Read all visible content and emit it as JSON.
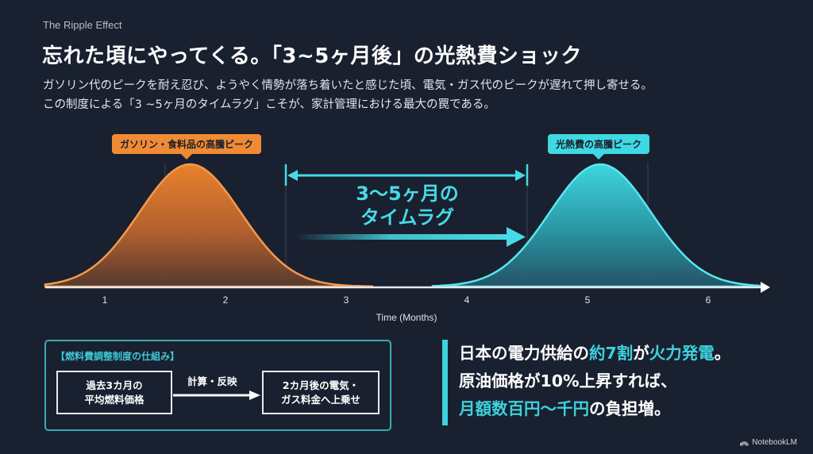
{
  "header": {
    "kicker": "The Ripple Effect",
    "title": "忘れた頃にやってくる。「3~5ヶ月後」の光熱費ショック",
    "description": [
      "ガソリン代のピークを耐え忍び、ようやく情勢が落ち着いたと感じた頃、電気・ガス代のピークが遅れて押し寄せる。",
      "この制度による「3 ~5ヶ月のタイムラグ」こそが、家計管理における最大の罠である。"
    ]
  },
  "chart_data": {
    "type": "area",
    "title": "",
    "xlabel": "Time (Months)",
    "ylabel": "",
    "x_ticks": [
      1,
      2,
      3,
      4,
      5,
      6
    ],
    "xlim": [
      0.5,
      6.5
    ],
    "grid_x": [
      1.5,
      2.5,
      4.5,
      5.5
    ],
    "series": [
      {
        "name": "ガソリン・食料品の高騰ピーク",
        "color": "#f08a34",
        "shape": "gaussian",
        "peak_x": 1.7,
        "peak_relative_height": 1.0,
        "spread_sd_months": 0.42
      },
      {
        "name": "光熱費の高騰ピーク",
        "color": "#3ed9e3",
        "shape": "gaussian",
        "peak_x": 5.1,
        "peak_relative_height": 1.0,
        "spread_sd_months": 0.42
      }
    ],
    "annotations": [
      {
        "type": "span",
        "from": 2.5,
        "to": 4.5,
        "label": "3～5ヶ月の\nタイムラグ",
        "color": "#46dbe6"
      }
    ],
    "legend": "none",
    "grid": true
  },
  "chart": {
    "callout_orange": "ガソリン・食料品の高騰ピーク",
    "callout_cyan": "光熱費の高騰ピーク",
    "lag_line1": "3～5ヶ月の",
    "lag_line2": "タイムラグ",
    "ticks": [
      "1",
      "2",
      "3",
      "4",
      "5",
      "6"
    ],
    "xlabel": "Time (Months)"
  },
  "mechanism": {
    "title": "【燃料費調整制度の仕組み】",
    "node_a": "過去3カ月の\n平均燃料価格",
    "arrow_label": "計算・反映",
    "node_b": "2カ月後の電気・\nガス料金へ上乗せ"
  },
  "fact": {
    "line1": [
      {
        "text": "日本の電力供給の",
        "hl": false
      },
      {
        "text": "約7割",
        "hl": true
      },
      {
        "text": "が",
        "hl": false
      },
      {
        "text": "火力発電",
        "hl": true
      },
      {
        "text": "。",
        "hl": false
      }
    ],
    "line2": "原油価格が10%上昇すれば、",
    "line3": [
      {
        "text": "月額数百円～千円",
        "hl": true
      },
      {
        "text": "の負担増。",
        "hl": false
      }
    ]
  },
  "brand": {
    "label": "NotebookLM",
    "icon": "notebooklm-logo-icon"
  },
  "colors": {
    "background": "#19202f",
    "orange": "#f08a34",
    "cyan": "#3ed9e3",
    "highlight": "#3ed2de"
  }
}
